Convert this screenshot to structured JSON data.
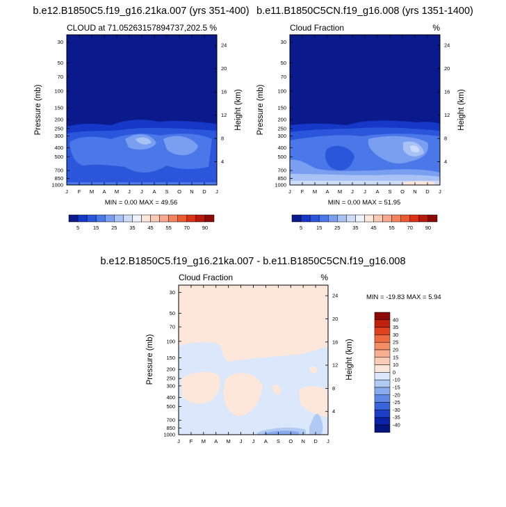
{
  "chart_data": [
    {
      "type": "heatmap",
      "title": "b.e12.B1850C5.f19_g16.21ka.007 (yrs 351-400)",
      "left_label": "CLOUD at 71.05263157894737,202.5",
      "right_label": "%",
      "ylabel": "Pressure (mb)",
      "ylabel_right": "Height (km)",
      "x_ticks": [
        "J",
        "F",
        "M",
        "A",
        "M",
        "J",
        "J",
        "A",
        "S",
        "O",
        "N",
        "D",
        "J"
      ],
      "y_ticks": [
        "30",
        "50",
        "70",
        "100",
        "150",
        "200",
        "250",
        "300",
        "400",
        "500",
        "700",
        "850",
        "1000"
      ],
      "y_ticks_right": [
        "24",
        "20",
        "16",
        "12",
        "8",
        "4"
      ],
      "min_max": "MIN =   0.00 MAX =  49.56"
    },
    {
      "type": "heatmap",
      "title": "b.e11.B1850C5CN.f19_g16.008 (yrs 1351-1400)",
      "left_label": "Cloud Fraction",
      "right_label": "%",
      "ylabel": "Pressure (mb)",
      "ylabel_right": "Height (km)",
      "x_ticks": [
        "J",
        "F",
        "M",
        "A",
        "M",
        "J",
        "J",
        "A",
        "S",
        "O",
        "N",
        "D",
        "J"
      ],
      "y_ticks": [
        "30",
        "50",
        "70",
        "100",
        "150",
        "200",
        "250",
        "300",
        "400",
        "500",
        "700",
        "850",
        "1000"
      ],
      "y_ticks_right": [
        "24",
        "20",
        "16",
        "12",
        "8",
        "4"
      ],
      "min_max": "MIN =   0.00 MAX =  51.95"
    },
    {
      "type": "heatmap",
      "title": "b.e12.B1850C5.f19_g16.21ka.007 - b.e11.B1850C5CN.f19_g16.008",
      "left_label": "Cloud Fraction",
      "right_label": "%",
      "ylabel": "Pressure (mb)",
      "ylabel_right": "Height (km)",
      "x_ticks": [
        "J",
        "F",
        "M",
        "A",
        "M",
        "J",
        "J",
        "A",
        "S",
        "O",
        "N",
        "D",
        "J"
      ],
      "y_ticks": [
        "30",
        "50",
        "70",
        "100",
        "150",
        "200",
        "250",
        "300",
        "400",
        "500",
        "700",
        "850",
        "1000"
      ],
      "y_ticks_right": [
        "24",
        "20",
        "16",
        "12",
        "8",
        "4"
      ],
      "min_max": "MIN = -19.83 MAX =   5.94"
    }
  ],
  "colorbar_top": {
    "labels": [
      "5",
      "15",
      "25",
      "35",
      "45",
      "55",
      "70",
      "90"
    ],
    "colors": [
      "#0a1a8c",
      "#1638c8",
      "#2a56dc",
      "#4a78e8",
      "#7a9ff0",
      "#a8c2f6",
      "#cddcf9",
      "#eef3fd",
      "#fde6dc",
      "#fbc9b6",
      "#f8a88e",
      "#f3845f",
      "#ec5a32",
      "#dc3214",
      "#b81a0a",
      "#8c0a06"
    ]
  },
  "colorbar_diff": {
    "labels": [
      "40",
      "35",
      "30",
      "25",
      "20",
      "15",
      "10",
      "0",
      "-10",
      "-15",
      "-20",
      "-25",
      "-30",
      "-35",
      "-40"
    ],
    "colors": [
      "#8c0a06",
      "#c0200c",
      "#e0401e",
      "#ee6a40",
      "#f48c64",
      "#f8ae90",
      "#fbcdb8",
      "#fde6da",
      "#dbe8fb",
      "#b0caf4",
      "#88aaee",
      "#6088e6",
      "#3864dc",
      "#1c3ec8",
      "#0c22a6",
      "#061480"
    ]
  },
  "colors": {
    "dark_blue": "#0a1a8c",
    "mid_blue": "#2a56dc",
    "light_blue": "#a8c2f6",
    "pale_blue": "#dbe8fb",
    "pale_peach": "#fde6da"
  }
}
